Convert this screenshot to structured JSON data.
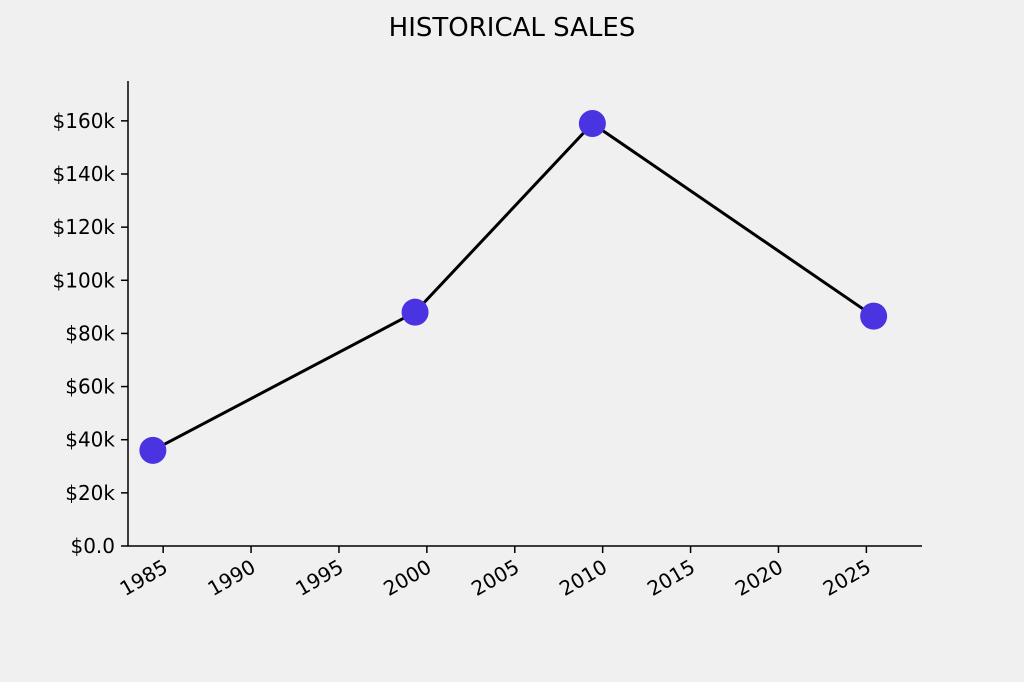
{
  "chart_data": {
    "type": "line",
    "title": "HISTORICAL SALES",
    "xlabel": "",
    "ylabel": "",
    "x_axis_type": "date",
    "x_ticks": [
      "1985",
      "1990",
      "1995",
      "2000",
      "2005",
      "2010",
      "2015",
      "2020",
      "2025"
    ],
    "y_ticks": [
      "$0.0",
      "$20k",
      "$40k",
      "$60k",
      "$80k",
      "$100k",
      "$120k",
      "$140k",
      "$160k"
    ],
    "y_tick_values": [
      0,
      20000,
      40000,
      60000,
      80000,
      100000,
      120000,
      140000,
      160000
    ],
    "xlim": [
      "1983-01-01",
      "2028-03-01"
    ],
    "ylim": [
      0,
      175000
    ],
    "grid": false,
    "series": [
      {
        "x": [
          "1984-06-01",
          "1999-05-01",
          "2009-06-01",
          "2025-06-01"
        ],
        "y": [
          36000,
          88000,
          159000,
          86500
        ],
        "line_color": "#000000",
        "marker_color": "#4a33e0"
      }
    ]
  }
}
